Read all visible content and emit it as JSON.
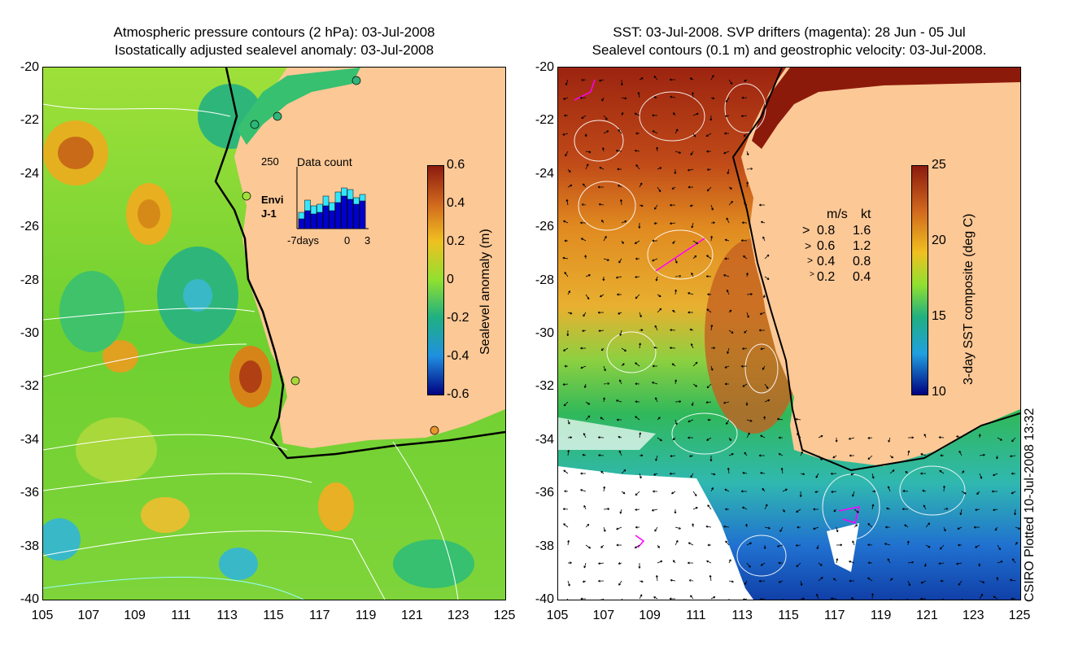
{
  "left_panel": {
    "title_line1": "Atmospheric pressure contours (2 hPa): 03-Jul-2008",
    "title_line2": "Isostatically adjusted sealevel anomaly: 03-Jul-2008",
    "y_ticks": [
      "-20",
      "-22",
      "-24",
      "-26",
      "-28",
      "-30",
      "-32",
      "-34",
      "-36",
      "-38",
      "-40"
    ],
    "x_ticks": [
      "105",
      "107",
      "109",
      "111",
      "113",
      "115",
      "117",
      "119",
      "121",
      "123",
      "125"
    ],
    "colorbar": {
      "label": "Sealevel anomaly (m)",
      "ticks": [
        "0.6",
        "0.4",
        "0.2",
        "0",
        "-0.2",
        "-0.4",
        "-0.6"
      ]
    },
    "inset": {
      "title": "Data count",
      "y_label": "250",
      "legend_envi": "Envi",
      "legend_j1": "J-1",
      "x_label_left": "-7days",
      "x_label_0": "0",
      "x_label_3": "3",
      "envi_color": "#33e6ff",
      "j1_color": "#0000cc"
    }
  },
  "right_panel": {
    "title_line1": "SST: 03-Jul-2008. SVP drifters (magenta): 28 Jun - 05 Jul",
    "title_line2": "Sealevel contours (0.1 m) and geostrophic velocity: 03-Jul-2008.",
    "y_ticks": [
      "-20",
      "-22",
      "-24",
      "-26",
      "-28",
      "-30",
      "-32",
      "-34",
      "-36",
      "-38",
      "-40"
    ],
    "x_ticks": [
      "105",
      "107",
      "109",
      "111",
      "113",
      "115",
      "117",
      "119",
      "121",
      "123",
      "125"
    ],
    "colorbar": {
      "label": "3-day SST composite (deg C)",
      "ticks": [
        "25",
        "20",
        "15",
        "10"
      ]
    },
    "velocity_legend": {
      "header_ms": "m/s",
      "header_kt": "kt",
      "rows": [
        {
          "ms": "0.8",
          "kt": "1.6"
        },
        {
          "ms": "0.6",
          "kt": "1.2"
        },
        {
          "ms": "0.4",
          "kt": "0.8"
        },
        {
          "ms": "0.2",
          "kt": "0.4"
        }
      ]
    }
  },
  "credit": "CSIRO Plotted 10-Jul-2008 13:32",
  "colors": {
    "land": "#fcc896",
    "drifter": "#ff00ff"
  }
}
